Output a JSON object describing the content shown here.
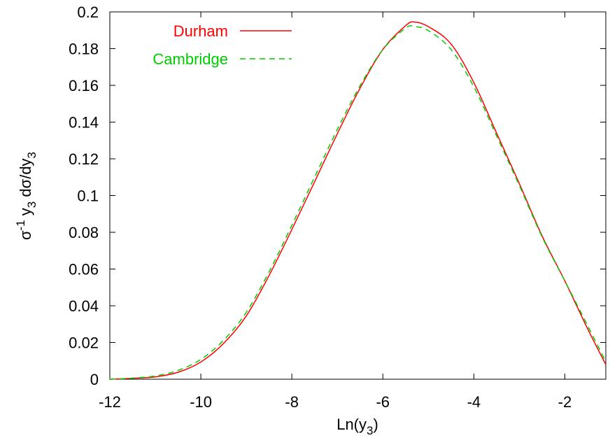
{
  "chart_data": {
    "type": "line",
    "title": "",
    "xlabel": "Ln(y3)",
    "ylabel": "σ-1 y3 dσ/dy3",
    "xlim": [
      -12,
      -1.1
    ],
    "ylim": [
      0,
      0.2
    ],
    "x_ticks": [
      -12,
      -10,
      -8,
      -6,
      -4,
      -2
    ],
    "x_tick_labels": [
      "-12",
      "-10",
      "-8",
      "-6",
      "-4",
      "-2"
    ],
    "y_ticks": [
      0,
      0.02,
      0.04,
      0.06,
      0.08,
      0.1,
      0.12,
      0.14,
      0.16,
      0.18,
      0.2
    ],
    "y_tick_labels": [
      "0",
      "0.02",
      "0.04",
      "0.06",
      "0.08",
      "0.1",
      "0.12",
      "0.14",
      "0.16",
      "0.18",
      "0.2"
    ],
    "grid": false,
    "legend_position": "top-left",
    "series": [
      {
        "name": "Durham",
        "color": "#ff0000",
        "dash": "solid",
        "x": [
          -12.0,
          -11.5,
          -11.0,
          -10.5,
          -10.0,
          -9.5,
          -9.0,
          -8.5,
          -8.0,
          -7.5,
          -7.0,
          -6.5,
          -6.0,
          -5.5,
          -5.3,
          -5.0,
          -4.5,
          -4.0,
          -3.5,
          -3.0,
          -2.5,
          -2.0,
          -1.5,
          -1.1
        ],
        "y": [
          0.0,
          0.0005,
          0.0013,
          0.0038,
          0.0094,
          0.0195,
          0.0345,
          0.0565,
          0.0815,
          0.1075,
          0.1337,
          0.1585,
          0.1795,
          0.1925,
          0.1945,
          0.192,
          0.1825,
          0.1615,
          0.134,
          0.1065,
          0.078,
          0.0535,
          0.0275,
          0.008
        ]
      },
      {
        "name": "Cambridge",
        "color": "#00cc00",
        "dash": "dashed",
        "x": [
          -12.0,
          -11.5,
          -11.0,
          -10.5,
          -10.0,
          -9.5,
          -9.0,
          -8.5,
          -8.0,
          -7.5,
          -7.0,
          -6.5,
          -6.0,
          -5.5,
          -5.3,
          -5.0,
          -4.5,
          -4.0,
          -3.5,
          -3.0,
          -2.5,
          -2.0,
          -1.5,
          -1.1
        ],
        "y": [
          0.0,
          0.0006,
          0.0018,
          0.0048,
          0.0108,
          0.0212,
          0.0365,
          0.0585,
          0.0838,
          0.11,
          0.136,
          0.1598,
          0.1795,
          0.1912,
          0.192,
          0.1898,
          0.1795,
          0.1592,
          0.1325,
          0.1055,
          0.0775,
          0.0535,
          0.0292,
          0.0095
        ]
      }
    ]
  }
}
